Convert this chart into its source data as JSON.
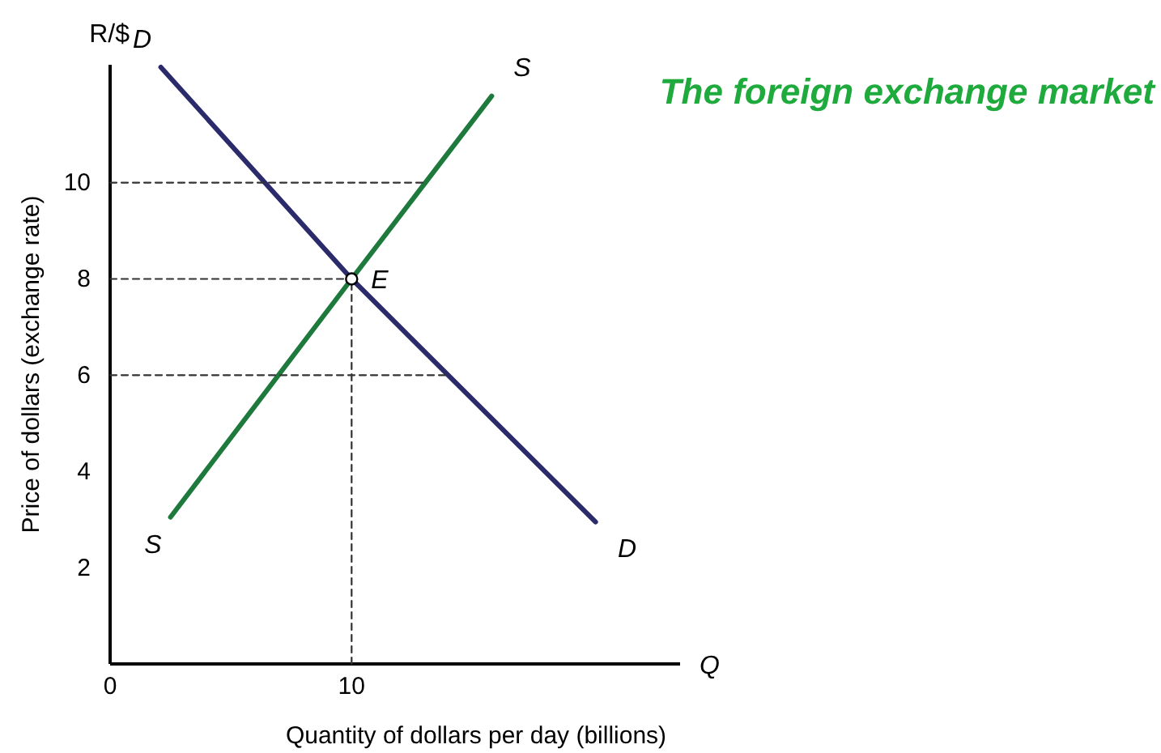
{
  "chart_data": {
    "type": "line",
    "title": "The foreign exchange market",
    "xlabel": "Quantity of dollars per day (billions)",
    "ylabel": "Price of dollars (exchange rate)",
    "xlim": [
      0,
      23.6
    ],
    "ylim": [
      0,
      12.45
    ],
    "xticks": [
      0,
      10
    ],
    "yticks": [
      2,
      4,
      6,
      8,
      10
    ],
    "grid": false,
    "legend": false,
    "series": [
      {
        "name": "D",
        "color": "#2b2a6b",
        "x": [
          2.1,
          10,
          20.1
        ],
        "values": [
          12.4,
          8,
          2.95
        ]
      },
      {
        "name": "S",
        "color": "#1e7a3c",
        "x": [
          2.5,
          10,
          15.8
        ],
        "values": [
          3.05,
          8,
          11.8
        ]
      },
      {
        "color": "#333333",
        "line_style": "dashed",
        "x": [
          0,
          13.1
        ],
        "values": [
          10,
          10
        ]
      },
      {
        "color": "#333333",
        "line_style": "dashed",
        "x": [
          0,
          10
        ],
        "values": [
          8,
          8
        ]
      },
      {
        "color": "#333333",
        "line_style": "dashed",
        "x": [
          0,
          14
        ],
        "values": [
          6,
          6
        ]
      },
      {
        "color": "#333333",
        "line_style": "dashed",
        "x": [
          10,
          10
        ],
        "values": [
          0,
          8
        ]
      },
      {
        "type": "scatter",
        "marker": "circle",
        "color": "#ffffff",
        "x": [
          10
        ],
        "values": [
          8
        ]
      }
    ],
    "annotations": [
      {
        "text": "E",
        "x": 10,
        "y": 8
      },
      "Q",
      "R/$"
    ]
  }
}
